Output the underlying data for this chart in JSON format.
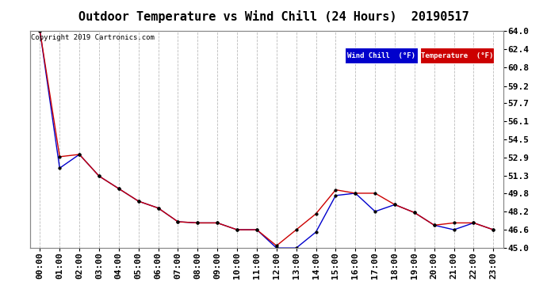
{
  "title": "Outdoor Temperature vs Wind Chill (24 Hours)  20190517",
  "copyright_text": "Copyright 2019 Cartronics.com",
  "x_labels": [
    "00:00",
    "01:00",
    "02:00",
    "03:00",
    "04:00",
    "05:00",
    "06:00",
    "07:00",
    "08:00",
    "09:00",
    "10:00",
    "11:00",
    "12:00",
    "13:00",
    "14:00",
    "15:00",
    "16:00",
    "17:00",
    "18:00",
    "19:00",
    "20:00",
    "21:00",
    "22:00",
    "23:00"
  ],
  "y_ticks": [
    45.0,
    46.6,
    48.2,
    49.8,
    51.3,
    52.9,
    54.5,
    56.1,
    57.7,
    59.2,
    60.8,
    62.4,
    64.0
  ],
  "ylim": [
    45.0,
    64.0
  ],
  "temperature": [
    64.0,
    53.0,
    53.2,
    51.3,
    50.2,
    49.1,
    48.5,
    47.3,
    47.2,
    47.2,
    46.6,
    46.6,
    45.2,
    46.6,
    48.0,
    50.1,
    49.8,
    49.8,
    48.8,
    48.1,
    47.0,
    47.2,
    47.2,
    46.6
  ],
  "wind_chill": [
    64.0,
    52.0,
    53.2,
    51.3,
    50.2,
    49.1,
    48.5,
    47.3,
    47.2,
    47.2,
    46.6,
    46.6,
    45.0,
    45.0,
    46.4,
    49.6,
    49.8,
    48.2,
    48.8,
    48.1,
    47.0,
    46.6,
    47.2,
    46.6
  ],
  "temp_color": "#cc0000",
  "wind_chill_color": "#0000cc",
  "background_color": "#ffffff",
  "grid_color": "#bbbbbb",
  "title_fontsize": 11,
  "tick_fontsize": 8,
  "legend_wind_chill_bg": "#0000cc",
  "legend_temp_bg": "#cc0000",
  "legend_text_color": "#ffffff",
  "legend_wc_label": "Wind Chill  (°F)",
  "legend_temp_label": "Temperature  (°F)"
}
